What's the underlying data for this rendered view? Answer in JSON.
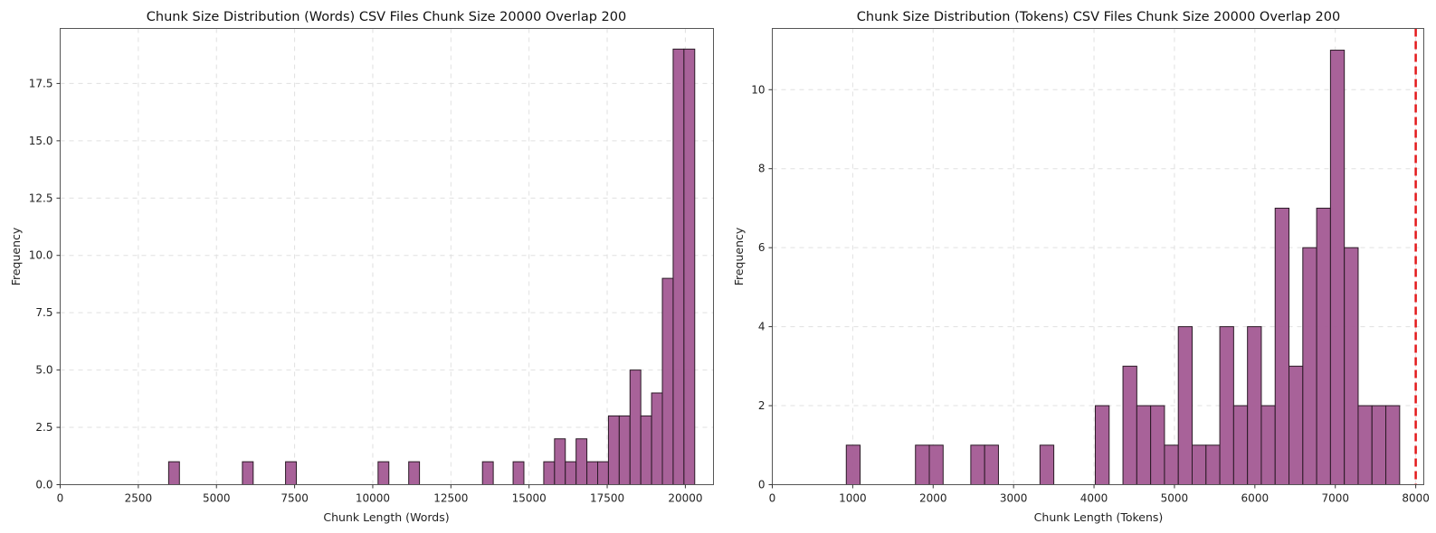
{
  "chart_data": [
    {
      "type": "bar",
      "title": "Chunk Size Distribution (Words) CSV Files Chunk Size 20000 Overlap 200",
      "xlabel": "Chunk Length (Words)",
      "ylabel": "Frequency",
      "xlim": [
        0,
        20900
      ],
      "ylim": [
        0,
        19.9
      ],
      "xticks": [
        0,
        2500,
        5000,
        7500,
        10000,
        12500,
        15000,
        17500,
        20000
      ],
      "xtick_labels": [
        "0",
        "2500",
        "5000",
        "7500",
        "10000",
        "12500",
        "15000",
        "17500",
        "20000"
      ],
      "yticks": [
        0,
        2.5,
        5,
        7.5,
        10,
        12.5,
        15,
        17.5
      ],
      "ytick_labels": [
        "0.0",
        "2.5",
        "5.0",
        "7.5",
        "10.0",
        "12.5",
        "15.0",
        "17.5"
      ],
      "bin_width": 345,
      "bins": [
        {
          "x0": 3470,
          "count": 1
        },
        {
          "x0": 5830,
          "count": 1
        },
        {
          "x0": 7210,
          "count": 1
        },
        {
          "x0": 10170,
          "count": 1
        },
        {
          "x0": 11150,
          "count": 1
        },
        {
          "x0": 13510,
          "count": 1
        },
        {
          "x0": 14490,
          "count": 1
        },
        {
          "x0": 15470,
          "count": 1
        },
        {
          "x0": 15815,
          "count": 2
        },
        {
          "x0": 16160,
          "count": 1
        },
        {
          "x0": 16505,
          "count": 2
        },
        {
          "x0": 16850,
          "count": 1
        },
        {
          "x0": 17195,
          "count": 1
        },
        {
          "x0": 17540,
          "count": 3
        },
        {
          "x0": 17885,
          "count": 3
        },
        {
          "x0": 18230,
          "count": 5
        },
        {
          "x0": 18575,
          "count": 3
        },
        {
          "x0": 18920,
          "count": 4
        },
        {
          "x0": 19265,
          "count": 9
        },
        {
          "x0": 19610,
          "count": 19
        },
        {
          "x0": 19955,
          "count": 19
        }
      ],
      "bar_color": "#a35a94",
      "grid": true
    },
    {
      "type": "bar",
      "title": "Chunk Size Distribution (Tokens) CSV Files Chunk Size 20000 Overlap 200",
      "xlabel": "Chunk Length (Tokens)",
      "ylabel": "Frequency",
      "xlim": [
        0,
        8100
      ],
      "ylim": [
        0,
        11.55
      ],
      "xticks": [
        0,
        1000,
        2000,
        3000,
        4000,
        5000,
        6000,
        7000,
        8000
      ],
      "xtick_labels": [
        "0",
        "1000",
        "2000",
        "3000",
        "4000",
        "5000",
        "6000",
        "7000",
        "8000"
      ],
      "yticks": [
        0,
        2,
        4,
        6,
        8,
        10
      ],
      "ytick_labels": [
        "0",
        "2",
        "4",
        "6",
        "8",
        "10"
      ],
      "bin_width": 172,
      "bins": [
        {
          "x0": 920,
          "count": 1
        },
        {
          "x0": 1780,
          "count": 1
        },
        {
          "x0": 1952,
          "count": 1
        },
        {
          "x0": 2468,
          "count": 1
        },
        {
          "x0": 2640,
          "count": 1
        },
        {
          "x0": 3328,
          "count": 1
        },
        {
          "x0": 4016,
          "count": 2
        },
        {
          "x0": 4360,
          "count": 3
        },
        {
          "x0": 4532,
          "count": 2
        },
        {
          "x0": 4704,
          "count": 2
        },
        {
          "x0": 4876,
          "count": 1
        },
        {
          "x0": 5048,
          "count": 4
        },
        {
          "x0": 5220,
          "count": 1
        },
        {
          "x0": 5392,
          "count": 1
        },
        {
          "x0": 5564,
          "count": 4
        },
        {
          "x0": 5736,
          "count": 2
        },
        {
          "x0": 5908,
          "count": 4
        },
        {
          "x0": 6080,
          "count": 2
        },
        {
          "x0": 6252,
          "count": 7
        },
        {
          "x0": 6424,
          "count": 3
        },
        {
          "x0": 6596,
          "count": 6
        },
        {
          "x0": 6768,
          "count": 7
        },
        {
          "x0": 6940,
          "count": 11
        },
        {
          "x0": 7112,
          "count": 6
        },
        {
          "x0": 7284,
          "count": 2
        },
        {
          "x0": 7456,
          "count": 2
        },
        {
          "x0": 7628,
          "count": 2
        }
      ],
      "reference_line": {
        "x": 8000,
        "color": "#e31a1c",
        "style": "dashed"
      },
      "bar_color": "#a35a94",
      "grid": true
    }
  ]
}
